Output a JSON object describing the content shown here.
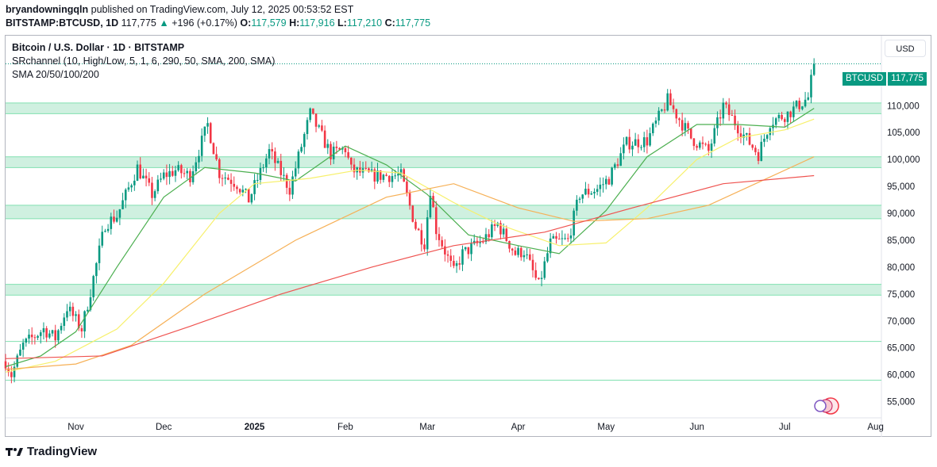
{
  "header": {
    "author": "bryandowningqln",
    "published": "published on TradingView.com, July 12, 2025 00:53:52 EST",
    "symbol": "BITSTAMP:BTCUSD, 1D",
    "last": "117,775",
    "change": "+196 (+0.17%)",
    "open_label": "O:",
    "open": "117,579",
    "high_label": "H:",
    "high": "117,916",
    "low_label": "L:",
    "low": "117,210",
    "close_label": "C:",
    "close": "117,775"
  },
  "legend": {
    "line1": "Bitcoin / U.S. Dollar · 1D · BITSTAMP",
    "line2": "SRchannel (10, High/Low, 5, 1, 6, 290, 50, SMA, 200, SMA)",
    "line3": "SMA 20/50/100/200"
  },
  "currency_button": "USD",
  "price_tag": {
    "symbol": "BTCUSD",
    "value": "117,775"
  },
  "brand": "TradingView",
  "colors": {
    "up": "#089981",
    "down": "#f23645",
    "zone": "#cff0e0",
    "zone_border": "#80e0b0",
    "sma20": "#4caf50",
    "sma50": "#f7f06b",
    "sma100": "#f6b056",
    "sma200": "#ef5350"
  },
  "chart_data": {
    "type": "candlestick",
    "title": "Bitcoin / U.S. Dollar · 1D · BITSTAMP",
    "y_axis": {
      "min": 52000,
      "max": 123000,
      "ticks": [
        55000,
        60000,
        65000,
        70000,
        75000,
        80000,
        85000,
        90000,
        95000,
        100000,
        105000,
        110000,
        115000,
        120000
      ],
      "tick_labels": [
        "55,000",
        "60,000",
        "65,000",
        "70,000",
        "75,000",
        "80,000",
        "85,000",
        "90,000",
        "95,000",
        "100,000",
        "105,000",
        "110,000",
        "115,000",
        "120,000"
      ]
    },
    "x_axis": {
      "start": "2024-10-08",
      "end": "2025-08-03",
      "labels": [
        {
          "date": "2024-11-01",
          "text": "Nov"
        },
        {
          "date": "2024-12-01",
          "text": "Dec"
        },
        {
          "date": "2025-01-01",
          "text": "2025"
        },
        {
          "date": "2025-02-01",
          "text": "Feb"
        },
        {
          "date": "2025-03-01",
          "text": "Mar"
        },
        {
          "date": "2025-04-01",
          "text": "Apr"
        },
        {
          "date": "2025-05-01",
          "text": "May"
        },
        {
          "date": "2025-06-01",
          "text": "Jun"
        },
        {
          "date": "2025-07-01",
          "text": "Jul"
        },
        {
          "date": "2025-08-01",
          "text": "Aug"
        }
      ]
    },
    "support_resistance_zones": [
      [
        108500,
        110500
      ],
      [
        98500,
        100500
      ],
      [
        89000,
        91500
      ],
      [
        74800,
        76800
      ]
    ],
    "horizontal_lines": [
      66200,
      59000
    ],
    "last_price": 117775,
    "anchor_path": [
      [
        "2024-10-08",
        62500
      ],
      [
        "2024-10-10",
        60000
      ],
      [
        "2024-10-14",
        65500
      ],
      [
        "2024-10-21",
        68500
      ],
      [
        "2024-10-25",
        66800
      ],
      [
        "2024-10-29",
        72500
      ],
      [
        "2024-11-03",
        68500
      ],
      [
        "2024-11-06",
        75500
      ],
      [
        "2024-11-11",
        88000
      ],
      [
        "2024-11-15",
        89500
      ],
      [
        "2024-11-22",
        98500
      ],
      [
        "2024-11-27",
        93500
      ],
      [
        "2024-12-01",
        97000
      ],
      [
        "2024-12-05",
        98000
      ],
      [
        "2024-12-10",
        97000
      ],
      [
        "2024-12-16",
        106500
      ],
      [
        "2024-12-20",
        97500
      ],
      [
        "2024-12-26",
        95500
      ],
      [
        "2024-12-30",
        92500
      ],
      [
        "2025-01-06",
        101500
      ],
      [
        "2025-01-13",
        94500
      ],
      [
        "2025-01-20",
        108500
      ],
      [
        "2025-01-27",
        101000
      ],
      [
        "2025-02-01",
        102000
      ],
      [
        "2025-02-03",
        98000
      ],
      [
        "2025-02-10",
        97000
      ],
      [
        "2025-02-20",
        97000
      ],
      [
        "2025-02-25",
        87500
      ],
      [
        "2025-02-28",
        84500
      ],
      [
        "2025-03-02",
        94500
      ],
      [
        "2025-03-04",
        87000
      ],
      [
        "2025-03-10",
        79000
      ],
      [
        "2025-03-13",
        82500
      ],
      [
        "2025-03-20",
        85000
      ],
      [
        "2025-03-25",
        88000
      ],
      [
        "2025-03-31",
        82500
      ],
      [
        "2025-04-03",
        83000
      ],
      [
        "2025-04-08",
        76500
      ],
      [
        "2025-04-12",
        84500
      ],
      [
        "2025-04-18",
        85000
      ],
      [
        "2025-04-22",
        93500
      ],
      [
        "2025-04-28",
        94500
      ],
      [
        "2025-05-02",
        96500
      ],
      [
        "2025-05-08",
        103000
      ],
      [
        "2025-05-15",
        103500
      ],
      [
        "2025-05-22",
        111000
      ],
      [
        "2025-05-30",
        104000
      ],
      [
        "2025-06-05",
        101500
      ],
      [
        "2025-06-10",
        110000
      ],
      [
        "2025-06-17",
        104500
      ],
      [
        "2025-06-22",
        101000
      ],
      [
        "2025-06-26",
        107000
      ],
      [
        "2025-07-02",
        108500
      ],
      [
        "2025-07-09",
        111500
      ],
      [
        "2025-07-11",
        117775
      ]
    ],
    "series": [
      {
        "name": "SMA 20",
        "values": [
          [
            "2024-10-08",
            61500
          ],
          [
            "2024-10-20",
            63500
          ],
          [
            "2024-11-01",
            68000
          ],
          [
            "2024-11-15",
            80000
          ],
          [
            "2024-12-01",
            93000
          ],
          [
            "2024-12-15",
            98500
          ],
          [
            "2025-01-01",
            97500
          ],
          [
            "2025-01-15",
            96000
          ],
          [
            "2025-02-01",
            102500
          ],
          [
            "2025-02-15",
            99000
          ],
          [
            "2025-03-01",
            93500
          ],
          [
            "2025-03-15",
            86000
          ],
          [
            "2025-04-01",
            84000
          ],
          [
            "2025-04-15",
            82500
          ],
          [
            "2025-05-01",
            90500
          ],
          [
            "2025-05-15",
            100500
          ],
          [
            "2025-06-01",
            106500
          ],
          [
            "2025-06-15",
            106500
          ],
          [
            "2025-07-01",
            106000
          ],
          [
            "2025-07-11",
            109500
          ]
        ]
      },
      {
        "name": "SMA 50",
        "values": [
          [
            "2024-10-08",
            60500
          ],
          [
            "2024-10-25",
            62500
          ],
          [
            "2024-11-15",
            68500
          ],
          [
            "2024-12-01",
            77000
          ],
          [
            "2024-12-20",
            90000
          ],
          [
            "2025-01-01",
            95500
          ],
          [
            "2025-01-20",
            96500
          ],
          [
            "2025-02-05",
            98000
          ],
          [
            "2025-02-20",
            97500
          ],
          [
            "2025-03-10",
            92000
          ],
          [
            "2025-03-25",
            88000
          ],
          [
            "2025-04-15",
            84000
          ],
          [
            "2025-05-01",
            84500
          ],
          [
            "2025-05-15",
            91000
          ],
          [
            "2025-06-01",
            100000
          ],
          [
            "2025-06-15",
            104000
          ],
          [
            "2025-07-01",
            105500
          ],
          [
            "2025-07-11",
            107500
          ]
        ]
      },
      {
        "name": "SMA 100",
        "values": [
          [
            "2024-10-08",
            61000
          ],
          [
            "2024-11-01",
            62000
          ],
          [
            "2024-11-20",
            65500
          ],
          [
            "2024-12-15",
            75000
          ],
          [
            "2025-01-15",
            85000
          ],
          [
            "2025-02-15",
            93000
          ],
          [
            "2025-03-10",
            95500
          ],
          [
            "2025-04-01",
            91000
          ],
          [
            "2025-04-20",
            88500
          ],
          [
            "2025-05-15",
            89000
          ],
          [
            "2025-06-05",
            91500
          ],
          [
            "2025-06-25",
            96500
          ],
          [
            "2025-07-11",
            100500
          ]
        ]
      },
      {
        "name": "SMA 200",
        "values": [
          [
            "2024-10-08",
            63000
          ],
          [
            "2024-11-10",
            63500
          ],
          [
            "2024-12-10",
            69000
          ],
          [
            "2025-01-10",
            75000
          ],
          [
            "2025-02-10",
            80000
          ],
          [
            "2025-03-10",
            84000
          ],
          [
            "2025-04-10",
            86500
          ],
          [
            "2025-05-10",
            91000
          ],
          [
            "2025-06-10",
            95500
          ],
          [
            "2025-07-11",
            97000
          ]
        ]
      }
    ]
  }
}
